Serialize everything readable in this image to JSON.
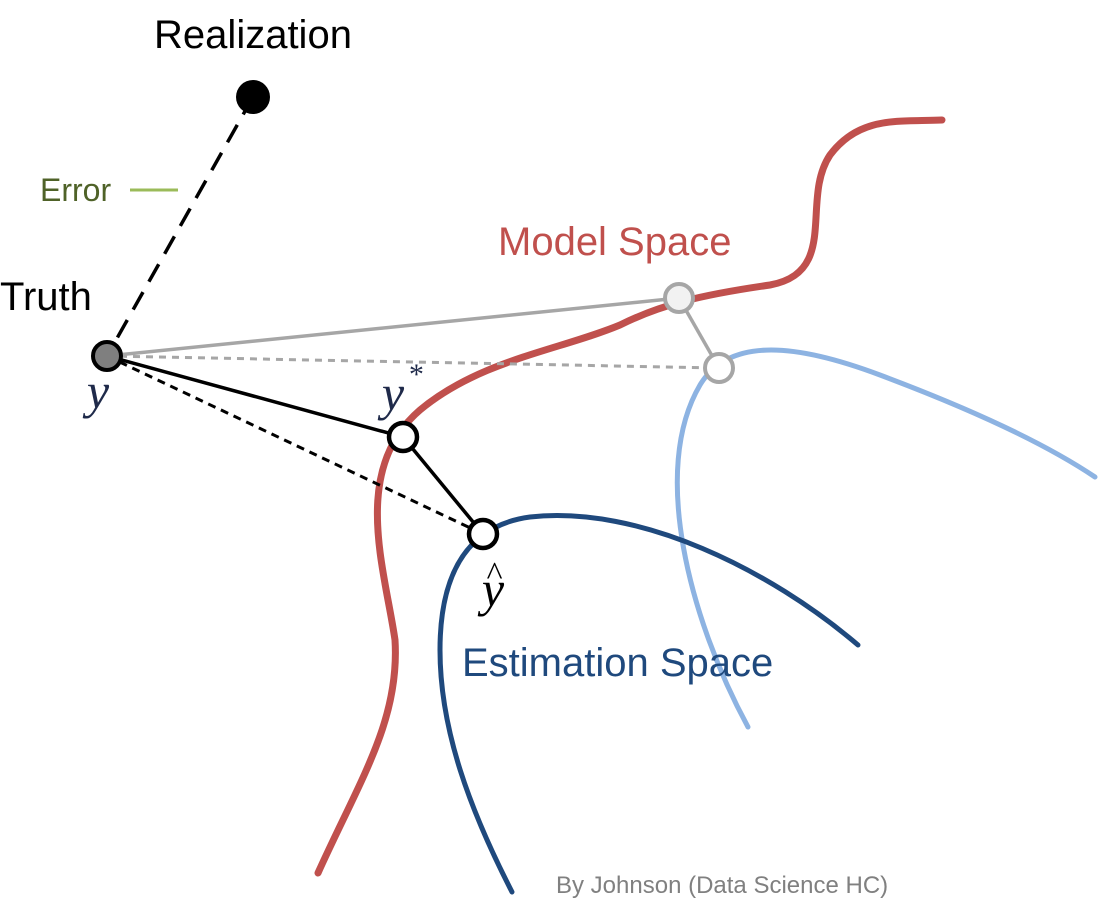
{
  "labels": {
    "realization": "Realization",
    "error": "Error",
    "truth": "Truth",
    "model_space": "Model Space",
    "estimation_space": "Estimation Space",
    "credit": "By Johnson (Data Science HC)"
  },
  "symbols": {
    "truth_point": "y",
    "model_point": "y",
    "model_point_superscript": "*",
    "estimate_point": "y",
    "estimate_hat": "^"
  },
  "colors": {
    "model_space_curve": "#c0504d",
    "estimation_space_curve": "#1f497d",
    "alt_estimation_curve": "#8db3e2",
    "error_label": "#4f6228",
    "error_tick": "#9bbb59",
    "gray_connector": "#a6a6a6",
    "credit_text": "#808080",
    "truth_point_fill": "#7f7f7f"
  }
}
